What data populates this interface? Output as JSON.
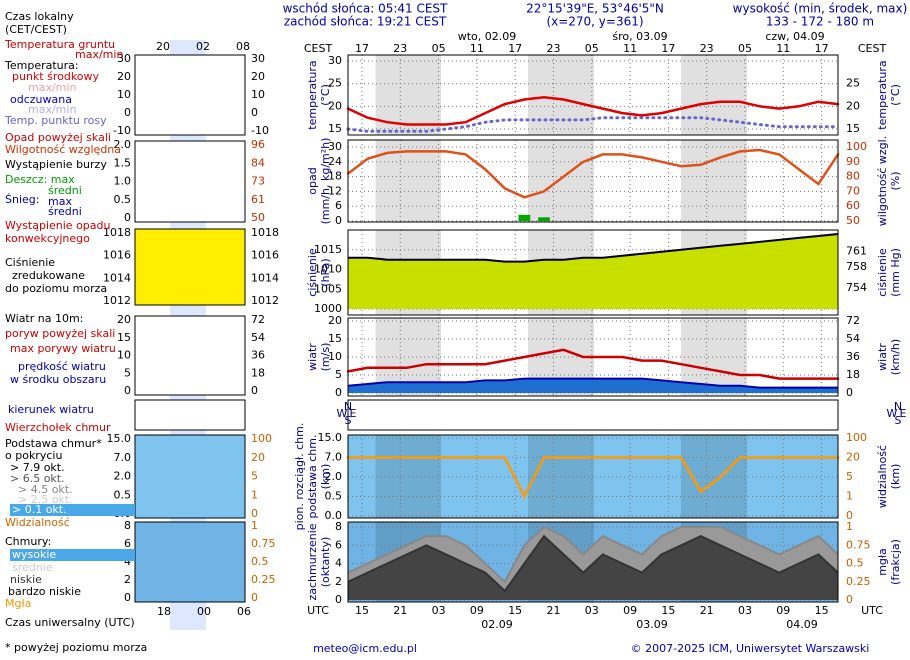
{
  "header": {
    "sunrise": "wschód słońca: 05:41 CEST",
    "sunset": "zachód słońca: 19:21 CEST",
    "coords": "22°15'39\"E, 53°46'5\"N",
    "grid": "(x=270, y=361)",
    "elevation_label": "wysokość (min, środek, max)",
    "elevation": "133 - 172 - 180 m"
  },
  "legend": {
    "items": [
      "Czas lokalny",
      "(CET/CEST)",
      "Temperatura gruntu",
      "max/min",
      "Temperatura:",
      "punkt środkowy",
      "max/min",
      "odczuwana",
      "max/min",
      "Temp. punktu rosy",
      "Opad powyżej skali",
      "Wilgotność względna",
      "Wystąpienie burzy",
      "Deszcz: max",
      "średni",
      "Śnieg:",
      "max",
      "średni",
      "Wystąpienie opadu",
      "konwekcyjnego",
      "Ciśnienie",
      "zredukowane",
      "do poziomu morza",
      "Wiatr na 10m:",
      "poryw powyżej skali",
      "max porywy wiatru",
      "prędkość wiatru",
      "w środku obszaru",
      "kierunek wiatru",
      "Wierzchołek chmur",
      "Podstawa chmur*",
      "o pokryciu",
      "> 7.9 okt.",
      "> 6.5 okt.",
      "> 4.5 okt.",
      "> 2.5 okt.",
      "> 0.1 okt.",
      "Widzialność",
      "Chmury:",
      "wysokie",
      "średnie",
      "niskie",
      "bardzo niskie",
      "Mgła",
      "Czas uniwersalny (UTC)",
      "* powyżej poziomu morza"
    ],
    "top_ticks": [
      "20",
      "02",
      "08"
    ],
    "bottom_ticks": [
      "18",
      "00",
      "06"
    ],
    "panels": [
      {
        "left": [
          "30",
          "20",
          "10",
          "0",
          "-10"
        ],
        "right": [
          "30",
          "20",
          "10",
          "0",
          "-10"
        ]
      },
      {
        "left": [
          "2.0",
          "1.5",
          "1.0",
          "0.5",
          "0"
        ],
        "right": [
          "96",
          "84",
          "73",
          "61",
          "50"
        ]
      },
      {
        "left": [
          "1018",
          "1016",
          "1014",
          "1012"
        ],
        "right": [
          "1018",
          "1016",
          "1014",
          "1012"
        ]
      },
      {
        "left": [
          "20",
          "15",
          "10",
          "5",
          "0"
        ],
        "right": [
          "72",
          "54",
          "36",
          "18",
          "0"
        ]
      },
      {
        "left": [],
        "right": []
      },
      {
        "left": [
          "15.0",
          "7.0",
          "2.0",
          "0.5",
          "0.0"
        ],
        "right": [
          "100",
          "20",
          "5",
          "1",
          "0"
        ]
      },
      {
        "left": [
          "8",
          "6",
          "4",
          "2",
          "0"
        ],
        "right": [
          "1",
          "0.75",
          "0.5",
          "0.25",
          "0"
        ]
      }
    ]
  },
  "time_axis": {
    "cest_label": "CEST",
    "utc_label": "UTC",
    "cest_ticks": [
      "17",
      "23",
      "05",
      "11",
      "17",
      "23",
      "05",
      "11",
      "17",
      "23",
      "05",
      "11",
      "17"
    ],
    "utc_ticks": [
      "15",
      "21",
      "03",
      "09",
      "15",
      "21",
      "03",
      "09",
      "15",
      "21",
      "03",
      "09",
      "15"
    ],
    "days": [
      "wto, 02.09",
      "śro, 03.09",
      "czw, 04.09"
    ],
    "utc_days": [
      "02.09",
      "03.09",
      "04.09"
    ],
    "compass": [
      "N",
      "W",
      "E",
      "S"
    ]
  },
  "chart_data": [
    {
      "type": "line",
      "ylabel": [
        "temperatura",
        "(°C)"
      ],
      "y2label": [
        "temperatura",
        "(°C)"
      ],
      "ylim": [
        15,
        30
      ],
      "yticks": [
        15,
        20,
        25,
        30
      ],
      "y2lim": [
        15,
        30
      ],
      "y2ticks": [
        15,
        20,
        25
      ],
      "grid": true,
      "series": [
        {
          "type": "line",
          "color": "#e00000",
          "values": [
            19.5,
            17.5,
            16.5,
            16,
            16,
            16,
            16.5,
            18.5,
            20.5,
            21.5,
            22,
            21.5,
            20.5,
            19.5,
            18.5,
            18,
            18.5,
            19.5,
            20.5,
            21,
            21,
            20,
            19.5,
            20,
            21,
            20.5
          ]
        },
        {
          "type": "line",
          "style": "dotted",
          "color": "#6666cc",
          "values": [
            15,
            14.5,
            14.5,
            14.5,
            14.5,
            15,
            15.5,
            16.5,
            17,
            17,
            17,
            17,
            17,
            17.5,
            17.5,
            17.5,
            17.5,
            17.5,
            17.5,
            17,
            16.5,
            16,
            15.5,
            15.5,
            15.5,
            15.5
          ]
        }
      ]
    },
    {
      "type": "line",
      "ylabel": [
        "opad",
        "(mm/h, kg/m²h)"
      ],
      "y2label": [
        "wilgotność wzgl.",
        "(%)"
      ],
      "ylim": [
        0,
        30
      ],
      "yticks": [
        0,
        6,
        12,
        18,
        24,
        30
      ],
      "y2lim": [
        50,
        100
      ],
      "y2ticks": [
        50,
        60,
        70,
        80,
        90,
        100
      ],
      "grid": true,
      "series": [
        {
          "type": "bar",
          "color": "#00aa00",
          "values": [
            0,
            0,
            0,
            0,
            0,
            0,
            0,
            0,
            0,
            2.5,
            1.5,
            0,
            0,
            0,
            0,
            0,
            0,
            0,
            0,
            0,
            0,
            0,
            0,
            0,
            0,
            0
          ]
        },
        {
          "type": "line",
          "axis": "y2",
          "color": "#e0501a",
          "values": [
            82,
            92,
            96,
            97,
            97,
            97,
            95,
            85,
            72,
            66,
            70,
            80,
            90,
            95,
            95,
            93,
            90,
            87,
            88,
            93,
            97,
            98,
            95,
            85,
            75,
            95
          ]
        }
      ]
    },
    {
      "type": "line",
      "ylabel": [
        "ciśnienie",
        "(hPa)"
      ],
      "y2label": [
        "ciśnienie",
        "(mm Hg)"
      ],
      "ylim": [
        1000,
        1019
      ],
      "yticks": [
        1000,
        1005,
        1010,
        1015
      ],
      "y2lim": [
        750,
        764.3
      ],
      "y2ticks": [
        754,
        758,
        761
      ],
      "grid": true,
      "series": [
        {
          "type": "area",
          "color": "#c8e000",
          "line_color": "#000000",
          "values": [
            1013,
            1013,
            1012.5,
            1012.5,
            1012.5,
            1012.5,
            1012.5,
            1012.5,
            1012,
            1012,
            1012.5,
            1012.5,
            1013,
            1013,
            1013.5,
            1014,
            1014.5,
            1015,
            1015.5,
            1016,
            1016.5,
            1017,
            1017.5,
            1018,
            1018.5,
            1019
          ]
        }
      ]
    },
    {
      "type": "line",
      "ylabel": [
        "wiatr",
        "(m/s)"
      ],
      "y2label": [
        "wiatr",
        "(km/h)"
      ],
      "ylim": [
        0,
        20
      ],
      "yticks": [
        0,
        5,
        10,
        15,
        20
      ],
      "y2lim": [
        0,
        72
      ],
      "y2ticks": [
        0,
        18,
        36,
        54,
        72
      ],
      "grid": true,
      "series": [
        {
          "type": "area",
          "color": "#1e6fd0",
          "line_color": "#0000aa",
          "values": [
            2,
            2.5,
            3,
            3,
            3,
            3,
            3,
            3.5,
            3.5,
            4,
            4,
            4,
            4,
            4,
            4,
            4,
            3.5,
            3,
            2.5,
            2,
            2,
            1.5,
            1.5,
            1.5,
            1.5,
            1.5
          ]
        },
        {
          "type": "line",
          "color": "#cc0000",
          "values": [
            6,
            7,
            7,
            7,
            8,
            8,
            8,
            8,
            9,
            10,
            11,
            12,
            10,
            10,
            10,
            9,
            9,
            8,
            7,
            6,
            5,
            5,
            4,
            4,
            4,
            4
          ]
        }
      ]
    },
    {
      "type": "line",
      "scale": "piecewise",
      "ylabel": [
        "pion. rozciągł. chm.",
        "podstawa chm.",
        "(km)"
      ],
      "y2label": [
        "widzialność",
        "(km)"
      ],
      "ylim": [
        0,
        15
      ],
      "yticks": [
        {
          "value": 0,
          "label": "0.0"
        },
        {
          "value": 0.5,
          "label": "0.5"
        },
        {
          "value": 2,
          "label": "2.0"
        },
        {
          "value": 7,
          "label": "7.0"
        },
        {
          "value": 15,
          "label": "15.0"
        }
      ],
      "y2lim": [
        0,
        100
      ],
      "y2ticks": [
        0,
        1,
        5,
        20,
        100
      ],
      "grid": true,
      "series": [
        {
          "type": "line",
          "axis": "y2",
          "color": "#ff9900",
          "values": [
            20,
            20,
            20,
            20,
            20,
            20,
            20,
            20,
            20,
            1,
            20,
            20,
            20,
            20,
            20,
            20,
            20,
            20,
            2,
            5,
            20,
            20,
            20,
            20,
            20,
            20
          ]
        }
      ]
    },
    {
      "type": "line",
      "ylabel": [
        "zachmurzenie",
        "(oktanty)"
      ],
      "y2label": [
        "mgła",
        "(frakcja)"
      ],
      "ylim": [
        0,
        8
      ],
      "yticks": [
        0,
        2,
        4,
        6,
        8
      ],
      "y2lim": [
        0,
        1
      ],
      "y2ticks": [
        0,
        0.25,
        0.5,
        0.75,
        1
      ],
      "grid": true,
      "series": [
        {
          "type": "area",
          "color": "#999999",
          "line_color": "#888888",
          "values": [
            3,
            4,
            5,
            6,
            7,
            7,
            6,
            4,
            2,
            6,
            8,
            7,
            5,
            7,
            6,
            5,
            7,
            8,
            8,
            8,
            7,
            6,
            5,
            6,
            7,
            5
          ]
        },
        {
          "type": "area",
          "color": "#444444",
          "line_color": "#333333",
          "values": [
            2,
            3,
            4,
            5,
            6,
            5,
            4,
            3,
            1,
            4,
            7,
            5,
            3,
            5,
            4,
            3,
            5,
            6,
            7,
            6,
            5,
            4,
            3,
            4,
            5,
            3
          ]
        }
      ]
    }
  ],
  "footer": {
    "email": "meteo@icm.edu.pl",
    "copyright": "© 2007-2025 ICM, Uniwersytet Warszawski"
  }
}
